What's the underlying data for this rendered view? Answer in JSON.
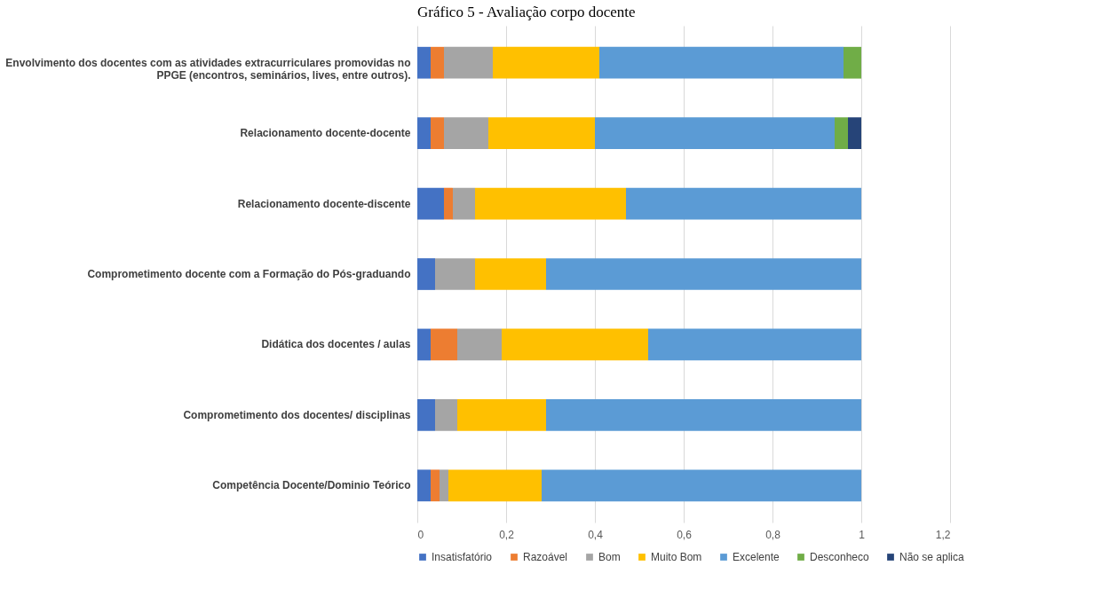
{
  "chart_data": {
    "type": "bar",
    "orientation": "horizontal",
    "stacked": true,
    "title": "Gráfico 5 - Avaliação corpo docente",
    "categories": [
      "Envolvimento dos docentes com as atividades extracurriculares promovidas no PPGE (encontros, seminários, lives, entre outros).",
      "Relacionamento docente-docente",
      "Relacionamento docente-discente",
      "Comprometimento docente com a Formação do Pós-graduando",
      "Didática dos docentes / aulas",
      "Comprometimento dos docentes/ disciplinas",
      "Competência Docente/Dominio Teórico"
    ],
    "series": [
      {
        "name": "Insatisfatório",
        "color": "#4472c4",
        "values": [
          0.03,
          0.03,
          0.06,
          0.04,
          0.03,
          0.04,
          0.03
        ]
      },
      {
        "name": "Razoável",
        "color": "#ed7d31",
        "values": [
          0.03,
          0.03,
          0.02,
          0,
          0.06,
          0,
          0.02
        ]
      },
      {
        "name": "Bom",
        "color": "#a5a5a5",
        "values": [
          0.11,
          0.1,
          0.05,
          0.09,
          0.1,
          0.05,
          0.02
        ]
      },
      {
        "name": "Muito Bom",
        "color": "#ffc000",
        "values": [
          0.24,
          0.24,
          0.34,
          0.16,
          0.33,
          0.2,
          0.21
        ]
      },
      {
        "name": "Excelente",
        "color": "#5b9bd5",
        "values": [
          0.55,
          0.54,
          0.53,
          0.71,
          0.48,
          0.71,
          0.72
        ]
      },
      {
        "name": "Desconheco",
        "color": "#70ad47",
        "values": [
          0.04,
          0.03,
          0,
          0,
          0,
          0,
          0
        ]
      },
      {
        "name": "Não se aplica",
        "color": "#264478",
        "values": [
          0,
          0.03,
          0,
          0,
          0,
          0,
          0
        ]
      }
    ],
    "xlim": [
      0,
      1.2
    ],
    "xticks": [
      0,
      {
        "value": 0.2,
        "label": "0,2"
      },
      {
        "value": 0.4,
        "label": "0,4"
      },
      {
        "value": 0.6,
        "label": "0,6"
      },
      {
        "value": 0.8,
        "label": "0,8"
      },
      1,
      {
        "value": 1.2,
        "label": "1,2"
      }
    ],
    "grid": "x",
    "legend": "bottom"
  }
}
